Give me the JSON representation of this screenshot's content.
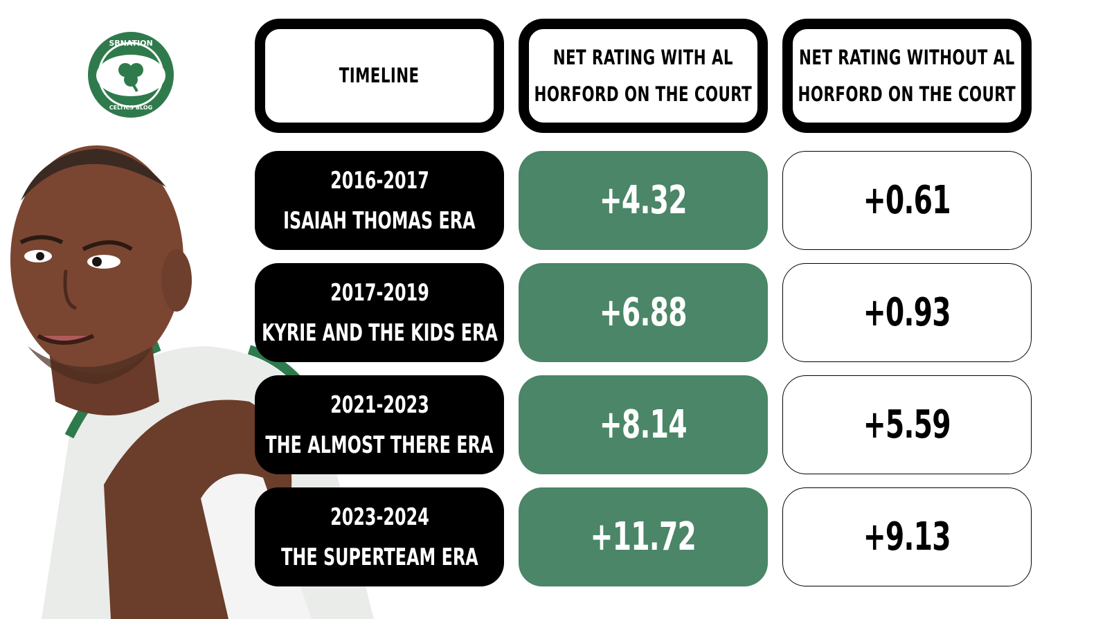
{
  "logo": {
    "top_text": "SBNATION",
    "bottom_text": "CELTICS BLOG",
    "colors": {
      "green": "#2f7a4c",
      "white": "#ffffff"
    }
  },
  "headers": {
    "timeline": "TIMELINE",
    "with_line1": "NET RATING WITH AL",
    "with_line2": "HORFORD ON THE COURT",
    "without_line1": "NET RATING WITHOUT AL",
    "without_line2": "HORFORD ON THE COURT"
  },
  "colors": {
    "with_bg": "#4a8667",
    "era_bg": "#000000"
  },
  "rows": [
    {
      "years": "2016-2017",
      "era": "ISAIAH THOMAS ERA",
      "with": "+4.32",
      "without": "+0.61"
    },
    {
      "years": "2017-2019",
      "era": "KYRIE AND THE KIDS ERA",
      "with": "+6.88",
      "without": "+0.93"
    },
    {
      "years": "2021-2023",
      "era": "THE ALMOST THERE ERA",
      "with": "+8.14",
      "without": "+5.59"
    },
    {
      "years": "2023-2024",
      "era": "THE SUPERTEAM ERA",
      "with": "+11.72",
      "without": "+9.13"
    }
  ],
  "chart_data": {
    "type": "table",
    "columns": [
      "TIMELINE",
      "NET RATING WITH AL HORFORD ON THE COURT",
      "NET RATING WITHOUT AL HORFORD ON THE COURT"
    ],
    "rows": [
      [
        "2016-2017 ISAIAH THOMAS ERA",
        4.32,
        0.61
      ],
      [
        "2017-2019 KYRIE AND THE KIDS ERA",
        6.88,
        0.93
      ],
      [
        "2021-2023 THE ALMOST THERE ERA",
        8.14,
        5.59
      ],
      [
        "2023-2024 THE SUPERTEAM ERA",
        11.72,
        9.13
      ]
    ]
  }
}
